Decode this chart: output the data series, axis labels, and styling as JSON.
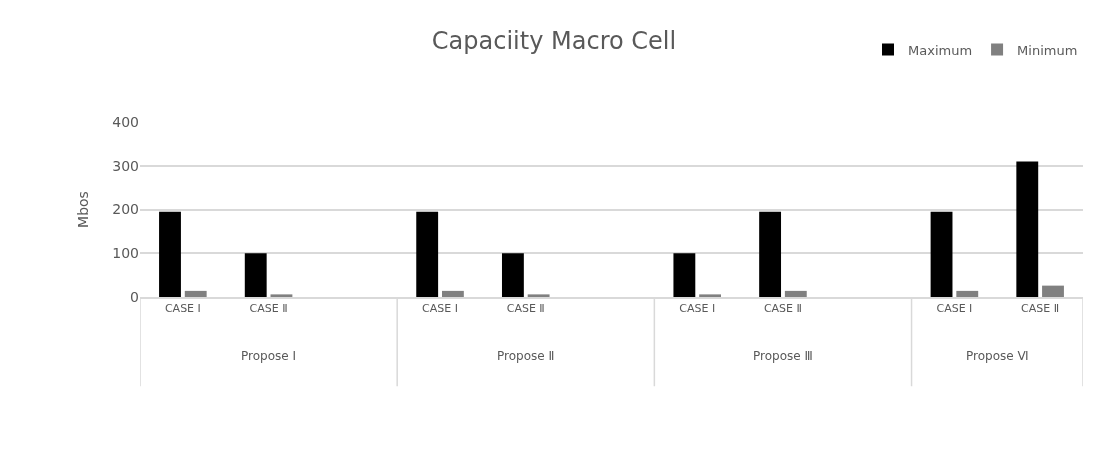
{
  "chart_data": {
    "type": "bar",
    "title": "Capaciity Macro Cell",
    "ylabel": "Mbos",
    "categories": [
      "CASE I",
      "CASE Ⅱ",
      null,
      "CASE I",
      "CASE Ⅱ",
      null,
      "CASE I",
      "CASE Ⅱ",
      null,
      "CASE I",
      "CASE Ⅱ"
    ],
    "series": [
      {
        "name": "Maximum",
        "color": "#000000",
        "values": [
          195,
          100,
          null,
          195,
          100,
          null,
          100,
          195,
          null,
          195,
          310
        ]
      },
      {
        "name": "Minimum",
        "color": "#808080",
        "values": [
          14,
          6,
          null,
          14,
          6,
          null,
          6,
          14,
          null,
          14,
          26
        ]
      }
    ],
    "annotations": [
      "Propose I",
      "Propose Ⅱ",
      "Propose Ⅲ",
      "Propose Ⅵ"
    ],
    "ylim": [
      0,
      400
    ],
    "yticks": [
      0,
      100,
      200,
      300,
      400
    ],
    "grid": "y",
    "legend": "top right"
  }
}
